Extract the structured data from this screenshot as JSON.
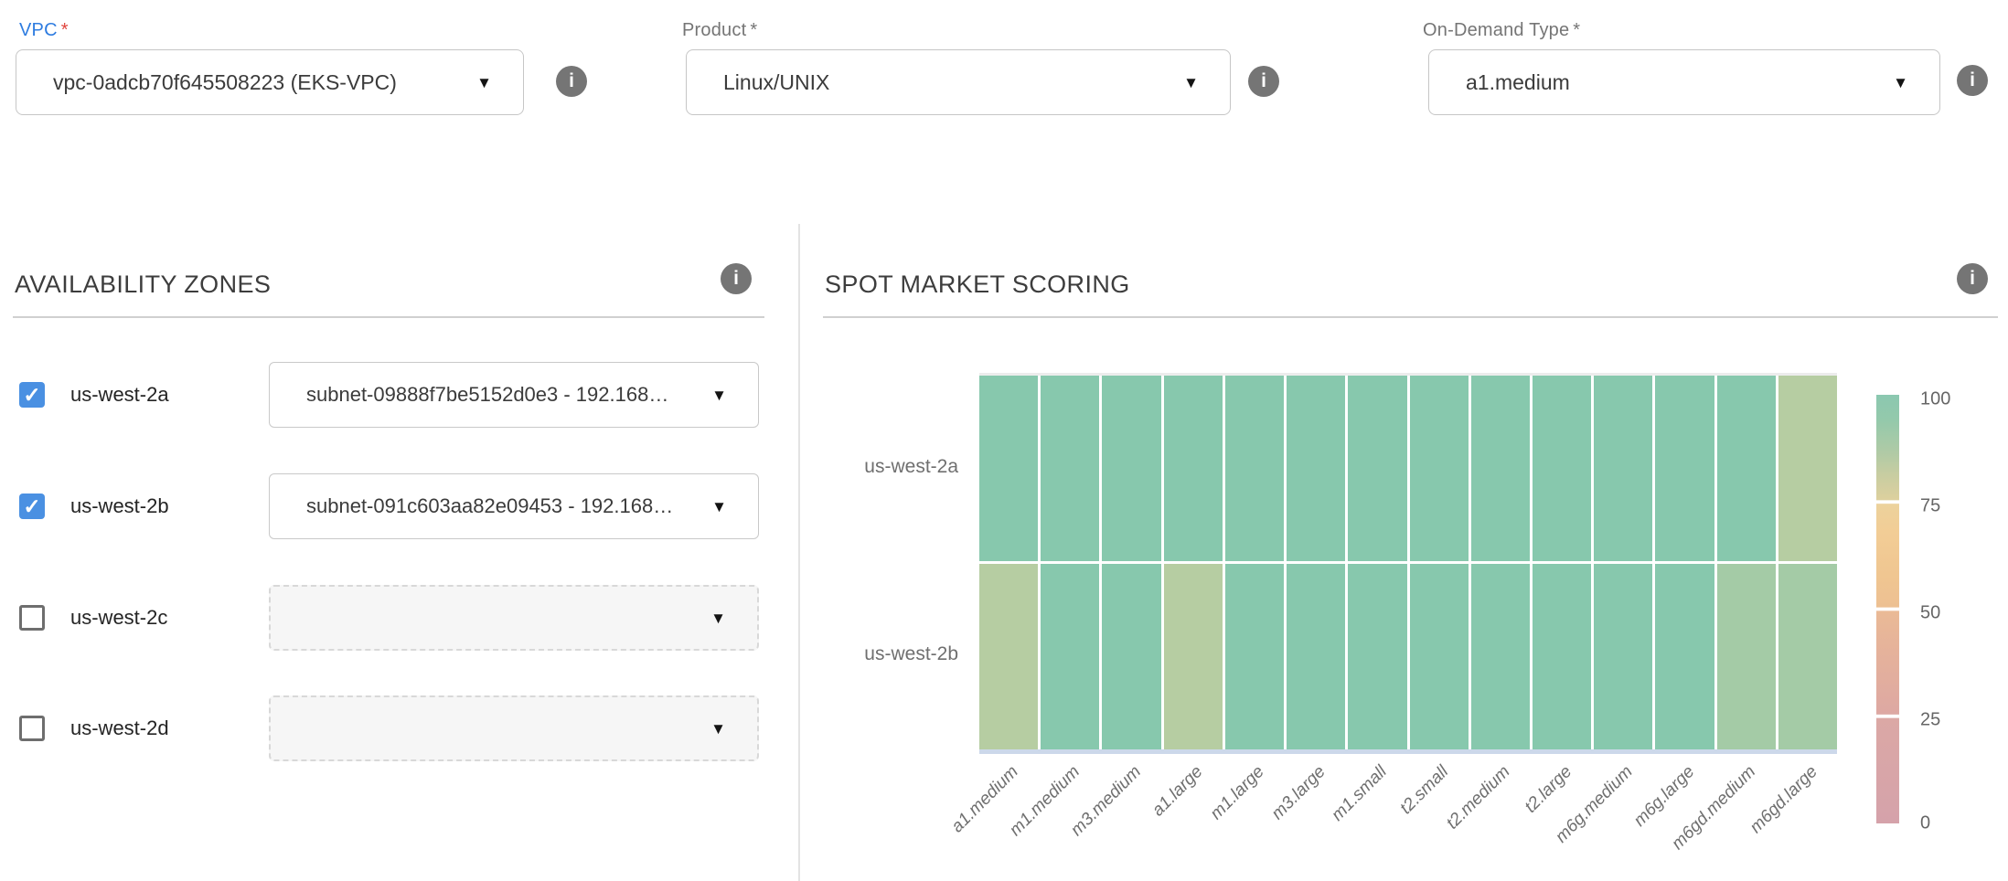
{
  "form": {
    "vpc": {
      "label": "VPC",
      "required_mark": "*",
      "value": "vpc-0adcb70f645508223 (EKS-VPC)"
    },
    "product": {
      "label": "Product",
      "required_mark": "*",
      "value": "Linux/UNIX"
    },
    "on_demand_type": {
      "label": "On-Demand Type",
      "required_mark": "*",
      "value": "a1.medium"
    }
  },
  "availability_zones": {
    "title": "AVAILABILITY ZONES",
    "zones": [
      {
        "name": "us-west-2a",
        "checked": true,
        "subnet": "subnet-09888f7be5152d0e3 - 192.168…"
      },
      {
        "name": "us-west-2b",
        "checked": true,
        "subnet": "subnet-091c603aa82e09453 - 192.168…"
      },
      {
        "name": "us-west-2c",
        "checked": false,
        "subnet": ""
      },
      {
        "name": "us-west-2d",
        "checked": false,
        "subnet": ""
      }
    ]
  },
  "spot_market": {
    "title": "SPOT MARKET SCORING"
  },
  "chart_data": {
    "type": "heatmap",
    "title": "SPOT MARKET SCORING",
    "x_categories": [
      "a1.medium",
      "m1.medium",
      "m3.medium",
      "a1.large",
      "m1.large",
      "m3.large",
      "m1.small",
      "t2.small",
      "t2.medium",
      "t2.large",
      "m6g.medium",
      "m6g.large",
      "m6gd.medium",
      "m6gd.large"
    ],
    "y_categories": [
      "us-west-2a",
      "us-west-2b"
    ],
    "values": [
      [
        96,
        96,
        96,
        96,
        96,
        96,
        96,
        96,
        96,
        96,
        96,
        96,
        96,
        82
      ],
      [
        82,
        96,
        96,
        83,
        96,
        96,
        96,
        96,
        96,
        96,
        96,
        96,
        88,
        88
      ]
    ],
    "cell_colors": [
      [
        "#87c8ad",
        "#87c8ad",
        "#87c8ad",
        "#87c8ad",
        "#87c8ad",
        "#87c8ad",
        "#87c8ad",
        "#87c8ad",
        "#87c8ad",
        "#87c8ad",
        "#87c8ad",
        "#87c8ad",
        "#87c8ad",
        "#b6cda2"
      ],
      [
        "#b6cda2",
        "#87c8ad",
        "#87c8ad",
        "#b6cda2",
        "#87c8ad",
        "#87c8ad",
        "#87c8ad",
        "#87c8ad",
        "#87c8ad",
        "#87c8ad",
        "#87c8ad",
        "#87c8ad",
        "#a4cba6",
        "#a4cba6"
      ]
    ],
    "colorbar": {
      "min": 0,
      "max": 100,
      "ticks": [
        100,
        75,
        50,
        25,
        0
      ]
    },
    "palette": {
      "high": "#87c8ad",
      "mid": "#a4cba6",
      "low_mid": "#b6cda2"
    },
    "legend_position": "right",
    "grid": false
  },
  "icons": {
    "info": "i",
    "dropdown_arrow": "▼",
    "checkmark": "✓"
  }
}
